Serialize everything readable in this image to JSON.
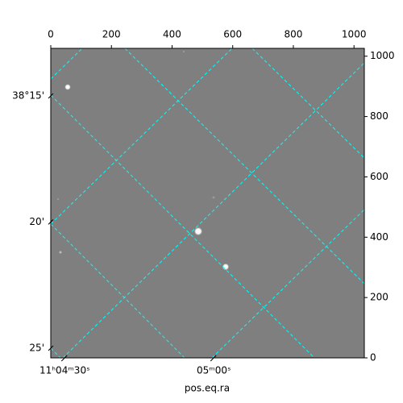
{
  "chart_data": {
    "type": "image",
    "xlabel": "pos.eq.ra",
    "xlim": [
      0,
      1034
    ],
    "ylim": [
      0,
      1026
    ],
    "xticks": [
      0,
      200,
      400,
      600,
      800,
      1000
    ],
    "yticks": [
      0,
      200,
      400,
      600,
      800,
      1000
    ],
    "ra_lim": [
      39867.2,
      39930.3
    ],
    "ra_ticks": [
      {
        "value": 39870,
        "label": "11ʰ04ᵐ30ˢ"
      },
      {
        "value": 39900,
        "label": "05ᵐ00ˢ"
      }
    ],
    "dec_lim": [
      38.2186,
      38.4231
    ],
    "dec_ticks": [
      {
        "value": 38.25,
        "label": "38°15'"
      },
      {
        "value": 38.3333,
        "label": "20'"
      },
      {
        "value": 38.4167,
        "label": "25'"
      }
    ],
    "grid": true,
    "grid_color": "#00ffff"
  }
}
